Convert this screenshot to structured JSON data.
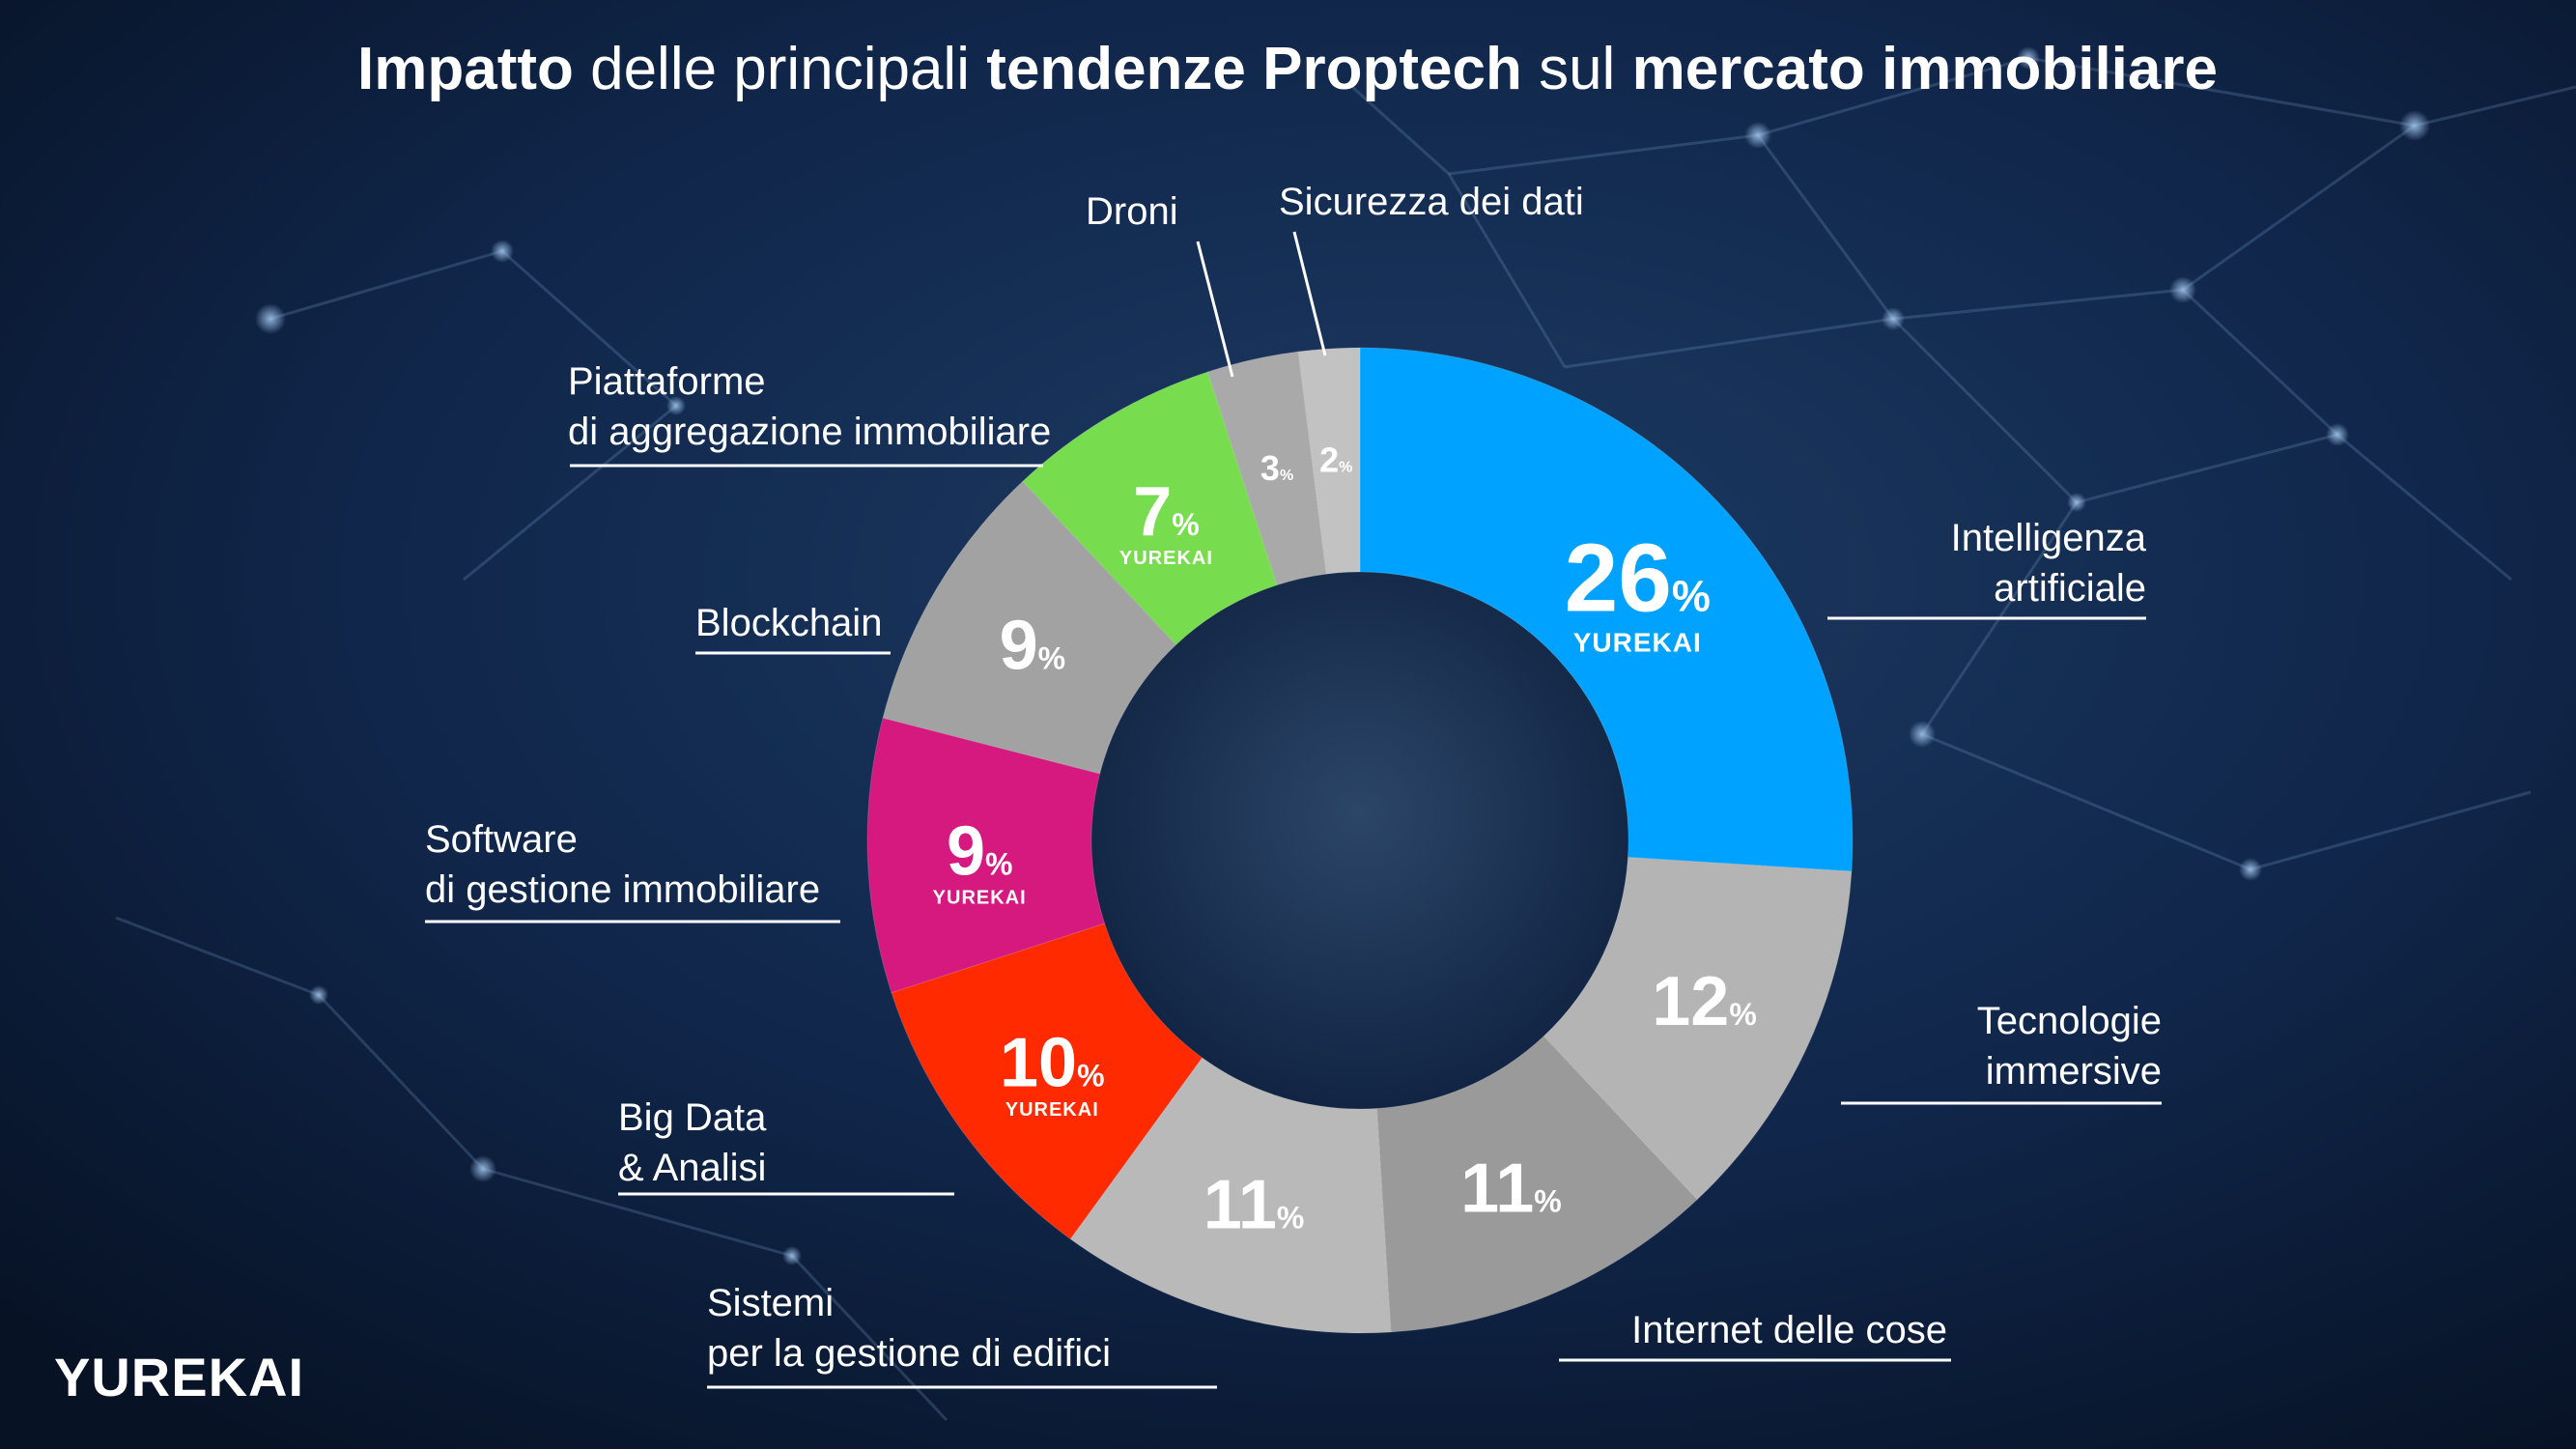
{
  "title": {
    "parts": [
      {
        "text": "Impatto",
        "bold": true
      },
      {
        "text": " delle principali ",
        "bold": false
      },
      {
        "text": "tendenze Proptech",
        "bold": true
      },
      {
        "text": " sul ",
        "bold": false
      },
      {
        "text": "mercato immobiliare",
        "bold": true
      }
    ]
  },
  "brand": {
    "logo_text": "YUREKAI",
    "accent": "#00a0ff"
  },
  "chart_data": {
    "type": "pie",
    "donut": true,
    "title": "Impatto delle principali tendenze Proptech sul mercato immobiliare",
    "unit": "%",
    "legend": "none",
    "slices": [
      {
        "label_lines": [
          "Intelligenza",
          "artificiale"
        ],
        "value": 26,
        "color": "#00a2ff",
        "watermark": "YUREKAI"
      },
      {
        "label_lines": [
          "Tecnologie",
          "immersive"
        ],
        "value": 12,
        "color": "#b4b4b4",
        "watermark": ""
      },
      {
        "label_lines": [
          "Internet delle cose"
        ],
        "value": 11,
        "color": "#9a9a9a",
        "watermark": ""
      },
      {
        "label_lines": [
          "Sistemi",
          "per la gestione di edifici"
        ],
        "value": 11,
        "color": "#b9b9b9",
        "watermark": ""
      },
      {
        "label_lines": [
          "Big Data",
          "& Analisi"
        ],
        "value": 10,
        "color": "#ff2a00",
        "watermark": "YUREKAI"
      },
      {
        "label_lines": [
          "Software",
          "di gestione immobiliare"
        ],
        "value": 9,
        "color": "#d5197f",
        "watermark": "YUREKAI"
      },
      {
        "label_lines": [
          "Blockchain"
        ],
        "value": 9,
        "color": "#a2a2a2",
        "watermark": ""
      },
      {
        "label_lines": [
          "Piattaforme",
          "di aggregazione immobiliare"
        ],
        "value": 7,
        "color": "#77dd4e",
        "watermark": "YUREKAI"
      },
      {
        "label_lines": [
          "Droni"
        ],
        "value": 3,
        "color": "#a9a9a9",
        "watermark": ""
      },
      {
        "label_lines": [
          "Sicurezza dei dati"
        ],
        "value": 2,
        "color": "#c2c2c2",
        "watermark": ""
      }
    ]
  }
}
